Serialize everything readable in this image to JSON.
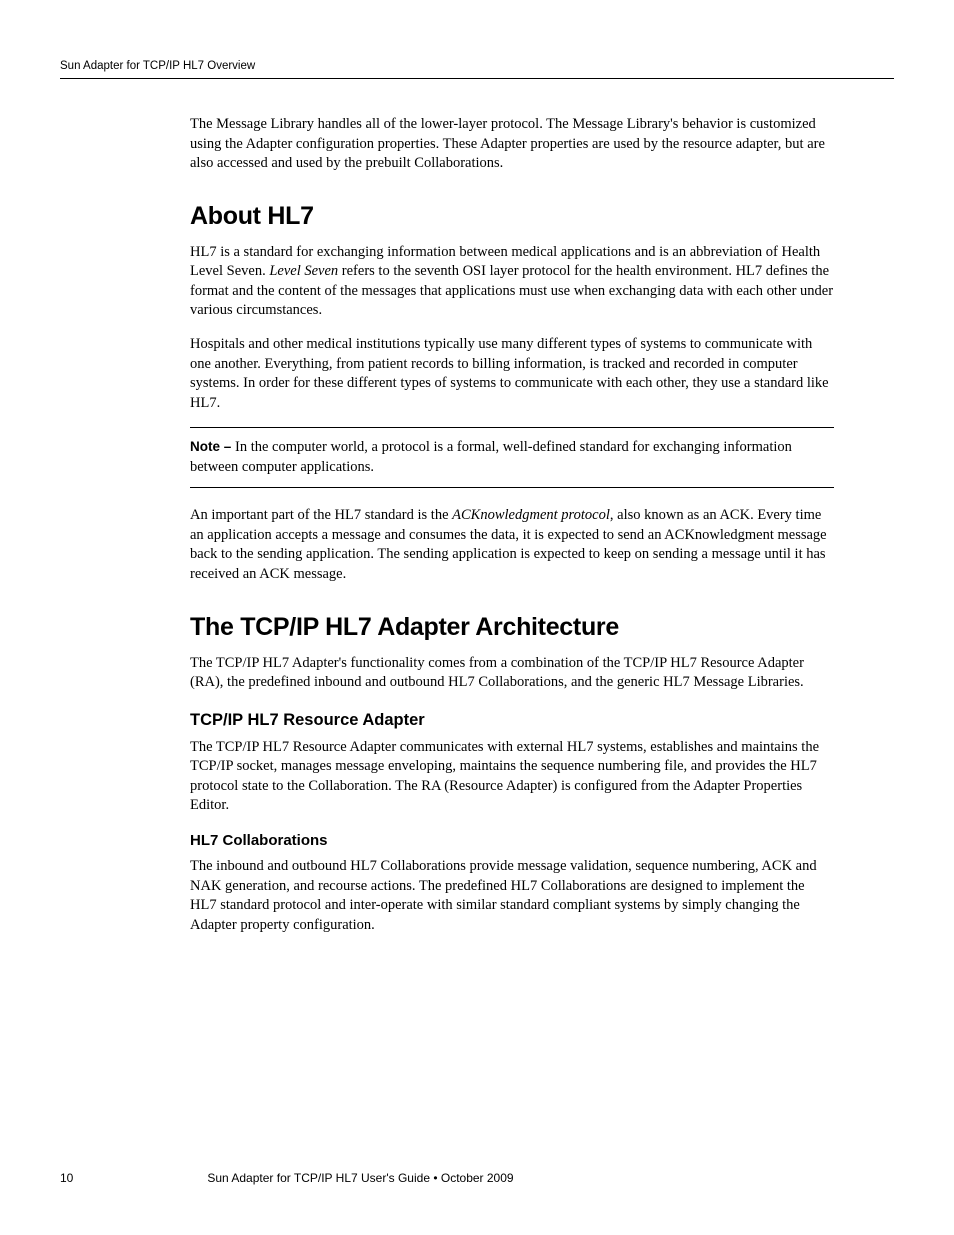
{
  "header": {
    "running_head": "Sun Adapter for TCP/IP HL7 Overview"
  },
  "intro_para": "The Message Library handles all of the lower-layer protocol. The Message Library's behavior is customized using the Adapter configuration properties. These Adapter properties are used by the resource adapter, but are also accessed and used by the prebuilt Collaborations.",
  "section1": {
    "title": "About HL7",
    "p1_a": "HL7 is a standard for exchanging information between medical applications and is an abbreviation of Health Level Seven. ",
    "p1_italic": "Level Seven",
    "p1_b": " refers to the seventh OSI layer protocol for the health environment. HL7 defines the format and the content of the messages that applications must use when exchanging data with each other under various circumstances.",
    "p2": "Hospitals and other medical institutions typically use many different types of systems to communicate with one another. Everything, from patient records to billing information, is tracked and recorded in computer systems. In order for these different types of systems to communicate with each other, they use a standard like HL7.",
    "note_label": "Note – ",
    "note_text": "In the computer world, a protocol is a formal, well-defined standard for exchanging information between computer applications.",
    "p3_a": "An important part of the HL7 standard is the ",
    "p3_italic": "ACKnowledgment protocol",
    "p3_b": ", also known as an ACK. Every time an application accepts a message and consumes the data, it is expected to send an ACKnowledgment message back to the sending application. The sending application is expected to keep on sending a message until it has received an ACK message."
  },
  "section2": {
    "title": "The TCP/IP HL7 Adapter Architecture",
    "p1": "The TCP/IP HL7 Adapter's functionality comes from a combination of the TCP/IP HL7 Resource Adapter (RA), the predefined inbound and outbound HL7 Collaborations, and the generic HL7 Message Libraries.",
    "sub1": {
      "title": "TCP/IP HL7 Resource Adapter",
      "p1": "The TCP/IP HL7 Resource Adapter communicates with external HL7 systems, establishes and maintains the TCP/IP socket, manages message enveloping, maintains the sequence numbering file, and provides the HL7 protocol state to the Collaboration. The RA (Resource Adapter) is configured from the Adapter Properties Editor."
    },
    "sub2": {
      "title": "HL7 Collaborations",
      "p1": "The inbound and outbound HL7 Collaborations provide message validation, sequence numbering, ACK and NAK generation, and recourse actions. The predefined HL7 Collaborations are designed to implement the HL7 standard protocol and inter-operate with similar standard compliant systems by simply changing the Adapter property configuration."
    }
  },
  "footer": {
    "page_number": "10",
    "doc_title": "Sun Adapter for TCP/IP HL7 User's Guide  •  October 2009"
  }
}
